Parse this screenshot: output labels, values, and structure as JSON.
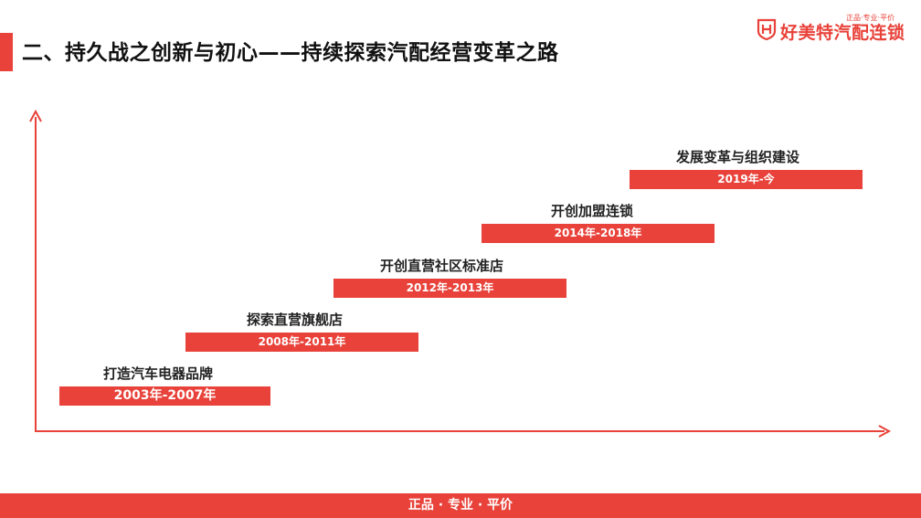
{
  "header": {
    "title": "二、持久战之创新与初心——持续探索汽配经营变革之路"
  },
  "logo": {
    "tagline": "正品·专业·平价",
    "name": "好美特汽配连锁",
    "brand_color": "#e8423a"
  },
  "stages": [
    {
      "label": "打造汽车电器品牌",
      "period": "2003年-2007年"
    },
    {
      "label": "探索直营旗舰店",
      "period": "2008年-2011年"
    },
    {
      "label": "开创直营社区标准店",
      "period": "2012年-2013年"
    },
    {
      "label": "开创加盟连锁",
      "period": "2014年-2018年"
    },
    {
      "label": "发展变革与组织建设",
      "period": "2019年-今"
    }
  ],
  "footer": {
    "text": "正品 · 专业 · 平价"
  }
}
